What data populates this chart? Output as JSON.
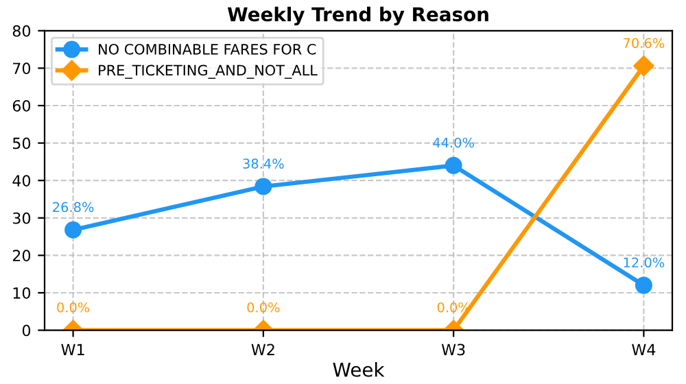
{
  "chart_data": {
    "type": "line",
    "title": "Weekly Trend by Reason",
    "xlabel": "Week",
    "categories": [
      "W1",
      "W2",
      "W3",
      "W4"
    ],
    "series": [
      {
        "name": "NO COMBINABLE FARES FOR C",
        "color": "#2196f3",
        "marker": "circle",
        "values": [
          26.8,
          38.4,
          44.0,
          12.0
        ],
        "value_labels": [
          "26.8%",
          "38.4%",
          "44.0%",
          "12.0%"
        ]
      },
      {
        "name": "PRE_TICKETING_AND_NOT_ALL",
        "color": "#ff9800",
        "marker": "diamond",
        "values": [
          0.0,
          0.0,
          0.0,
          70.6
        ],
        "value_labels": [
          "0.0%",
          "0.0%",
          "0.0%",
          "70.6%"
        ]
      }
    ],
    "ylim": [
      0,
      80
    ],
    "yticks": [
      0,
      10,
      20,
      30,
      40,
      50,
      60,
      70,
      80
    ],
    "grid": true,
    "legend": "top left",
    "line_style": "solid"
  }
}
